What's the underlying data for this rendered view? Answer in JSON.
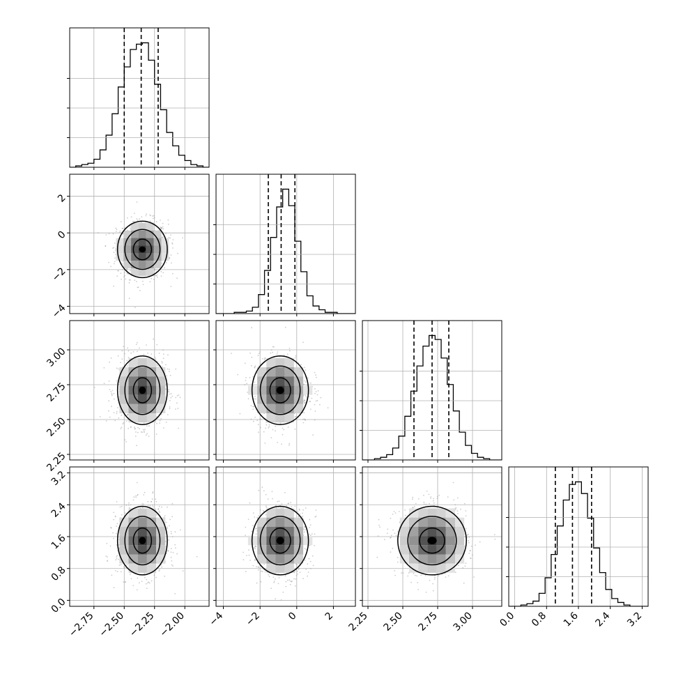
{
  "chart_data": {
    "type": "corner",
    "description_note": "",
    "params": [
      {
        "mean": -2.35,
        "sd": 0.1,
        "range": [
          -2.95,
          -1.8
        ],
        "ticks": [
          -2.75,
          -2.5,
          -2.25,
          -2.0
        ],
        "tick_labels": [
          "−2.75",
          "−2.50",
          "−2.25",
          "−2.00"
        ],
        "quantiles": [
          -2.5,
          -2.36,
          -2.22
        ]
      },
      {
        "mean": -0.9,
        "sd": 0.75,
        "range": [
          -4.4,
          3.2
        ],
        "ticks": [
          -4,
          -2,
          0,
          2
        ],
        "tick_labels": [
          "−4",
          "−2",
          "0",
          "2"
        ],
        "quantiles": [
          -1.55,
          -0.85,
          -0.1
        ]
      },
      {
        "mean": 2.71,
        "sd": 0.12,
        "range": [
          2.21,
          3.21
        ],
        "ticks": [
          2.25,
          2.5,
          2.75,
          3.0
        ],
        "tick_labels": [
          "2.25",
          "2.50",
          "2.75",
          "3.00"
        ],
        "quantiles": [
          2.58,
          2.71,
          2.83
        ]
      },
      {
        "mean": 1.5,
        "sd": 0.42,
        "range": [
          -0.15,
          3.35
        ],
        "ticks": [
          0.0,
          0.8,
          1.6,
          2.4,
          3.2
        ],
        "tick_labels": [
          "0.0",
          "0.8",
          "1.6",
          "2.4",
          "3.2"
        ],
        "quantiles": [
          1.02,
          1.45,
          1.93
        ]
      }
    ],
    "histograms": [
      [
        0,
        1,
        2,
        3,
        6,
        13,
        24,
        40,
        60,
        75,
        88,
        92,
        93,
        80,
        62,
        43,
        26,
        16,
        9,
        5,
        2,
        1,
        0
      ],
      [
        0,
        0,
        0,
        1,
        1,
        2,
        5,
        15,
        34,
        60,
        84,
        98,
        85,
        57,
        33,
        14,
        6,
        3,
        1,
        1,
        0,
        0,
        0
      ],
      [
        0,
        0,
        1,
        2,
        4,
        9,
        18,
        33,
        52,
        71,
        86,
        94,
        91,
        77,
        57,
        37,
        21,
        11,
        5,
        2,
        1,
        0,
        0
      ],
      [
        0,
        0,
        1,
        2,
        4,
        10,
        22,
        40,
        62,
        82,
        94,
        96,
        87,
        68,
        45,
        26,
        13,
        6,
        3,
        1,
        0,
        0,
        0
      ]
    ],
    "contour_levels": 3,
    "colors": {
      "line": "#000000",
      "grid": "#b0b0b0",
      "points": "#9a9a9a",
      "density_max": "#000000"
    }
  }
}
